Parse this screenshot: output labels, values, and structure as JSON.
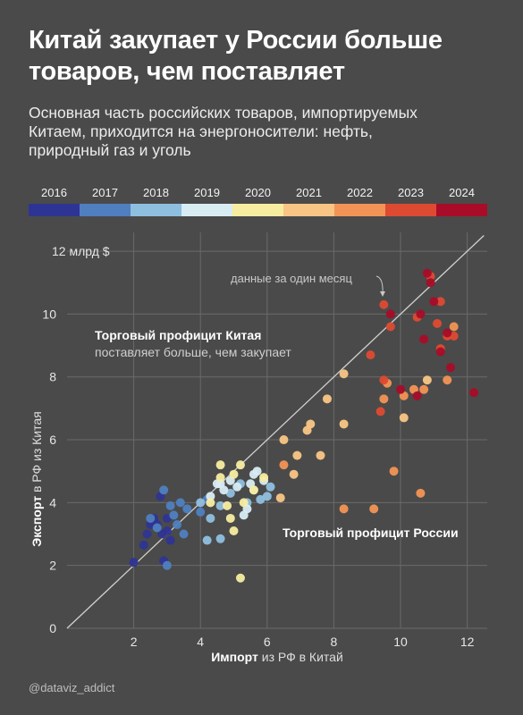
{
  "title_lines": [
    "Китай закупает у России больше",
    "товаров, чем поставляет"
  ],
  "subtitle_lines": [
    "Основная часть российских товаров, импортируемых",
    "Китаем, приходится на энергоносители: нефть,",
    "природный газ и уголь"
  ],
  "credit": "@dataviz_addict",
  "colors": {
    "background": "#4a4a4a",
    "grid": "#6a6a6a",
    "diagonal": "#d0d0d0",
    "years": {
      "2016": "#2e3494",
      "2017": "#4f7fbf",
      "2018": "#8fbfde",
      "2019": "#d8ecf3",
      "2020": "#f7eda0",
      "2021": "#f9c585",
      "2022": "#f29455",
      "2023": "#dd4a32",
      "2024": "#a80c28"
    }
  },
  "chart_data": {
    "type": "scatter",
    "title": "",
    "xlabel_bold": "Импорт",
    "xlabel_rest": " из РФ в Китай",
    "ylabel_bold": "Экспорт",
    "ylabel_rest": " в РФ из Китая",
    "xlim": [
      0,
      12.6
    ],
    "ylim": [
      0,
      12.6
    ],
    "x_ticks": [
      2,
      4,
      6,
      8,
      10,
      12
    ],
    "y_ticks": [
      0,
      2,
      4,
      6,
      8,
      10,
      12
    ],
    "y_tick_labels": [
      "0",
      "2",
      "4",
      "6",
      "8",
      "10",
      "12 млрд $"
    ],
    "grid": true,
    "diagonal_line": true,
    "legend": {
      "type": "color-bar",
      "position": "top",
      "years": [
        "2016",
        "2017",
        "2018",
        "2019",
        "2020",
        "2021",
        "2022",
        "2023",
        "2024"
      ]
    },
    "annotations": {
      "monthly_note": "данные за один месяц",
      "china_surplus_bold": "Торговый профицит Китая",
      "china_surplus_sub": "поставляет больше, чем закупает",
      "russia_surplus": "Торговый профицит России"
    },
    "series": [
      {
        "year": "2016",
        "points": [
          [
            2.0,
            2.1
          ],
          [
            2.3,
            2.65
          ],
          [
            2.4,
            3.0
          ],
          [
            2.5,
            3.3
          ],
          [
            2.6,
            3.5
          ],
          [
            2.7,
            3.3
          ],
          [
            2.8,
            4.2
          ],
          [
            2.85,
            3.0
          ],
          [
            2.9,
            2.15
          ],
          [
            3.0,
            3.1
          ],
          [
            3.0,
            3.5
          ],
          [
            3.1,
            2.8
          ]
        ]
      },
      {
        "year": "2017",
        "points": [
          [
            2.5,
            3.5
          ],
          [
            2.7,
            3.2
          ],
          [
            2.9,
            4.4
          ],
          [
            3.0,
            2.0
          ],
          [
            3.1,
            3.9
          ],
          [
            3.2,
            3.6
          ],
          [
            3.3,
            3.3
          ],
          [
            3.4,
            4.0
          ],
          [
            3.5,
            3.0
          ],
          [
            3.6,
            3.8
          ],
          [
            4.0,
            3.7
          ],
          [
            4.2,
            4.1
          ]
        ]
      },
      {
        "year": "2018",
        "points": [
          [
            4.0,
            4.0
          ],
          [
            4.3,
            3.5
          ],
          [
            4.6,
            3.9
          ],
          [
            4.9,
            4.3
          ],
          [
            5.2,
            4.6
          ],
          [
            5.4,
            4.0
          ],
          [
            5.6,
            4.4
          ],
          [
            5.8,
            4.1
          ],
          [
            6.0,
            4.2
          ],
          [
            6.1,
            4.5
          ],
          [
            4.2,
            2.8
          ],
          [
            4.6,
            2.85
          ]
        ]
      },
      {
        "year": "2019",
        "points": [
          [
            4.3,
            4.2
          ],
          [
            4.5,
            4.6
          ],
          [
            4.7,
            4.4
          ],
          [
            4.9,
            4.7
          ],
          [
            5.1,
            4.5
          ],
          [
            5.3,
            3.6
          ],
          [
            5.4,
            3.8
          ],
          [
            5.5,
            4.6
          ],
          [
            5.6,
            4.9
          ],
          [
            5.7,
            5.0
          ],
          [
            5.9,
            4.7
          ],
          [
            4.6,
            4.6
          ]
        ]
      },
      {
        "year": "2020",
        "points": [
          [
            4.3,
            4.0
          ],
          [
            4.6,
            4.8
          ],
          [
            4.6,
            5.2
          ],
          [
            4.8,
            3.9
          ],
          [
            4.9,
            3.5
          ],
          [
            5.0,
            4.9
          ],
          [
            5.0,
            3.1
          ],
          [
            5.2,
            5.2
          ],
          [
            5.3,
            4.0
          ],
          [
            5.2,
            1.6
          ],
          [
            5.6,
            4.4
          ],
          [
            5.9,
            4.8
          ]
        ]
      },
      {
        "year": "2021",
        "points": [
          [
            6.4,
            4.15
          ],
          [
            6.8,
            4.9
          ],
          [
            6.9,
            5.5
          ],
          [
            7.2,
            6.3
          ],
          [
            7.3,
            6.5
          ],
          [
            7.6,
            5.5
          ],
          [
            8.3,
            6.5
          ],
          [
            6.5,
            6.0
          ],
          [
            7.8,
            7.3
          ],
          [
            8.3,
            8.1
          ],
          [
            10.1,
            6.7
          ],
          [
            10.8,
            7.9
          ]
        ]
      },
      {
        "year": "2022",
        "points": [
          [
            6.5,
            5.2
          ],
          [
            8.3,
            3.8
          ],
          [
            9.2,
            3.8
          ],
          [
            9.5,
            7.3
          ],
          [
            9.6,
            7.8
          ],
          [
            9.8,
            5.0
          ],
          [
            10.1,
            7.4
          ],
          [
            10.4,
            7.6
          ],
          [
            10.6,
            4.3
          ],
          [
            10.7,
            7.6
          ],
          [
            11.4,
            7.9
          ],
          [
            11.6,
            9.6
          ]
        ]
      },
      {
        "year": "2023",
        "points": [
          [
            9.1,
            8.7
          ],
          [
            9.4,
            6.9
          ],
          [
            9.5,
            7.9
          ],
          [
            9.5,
            10.3
          ],
          [
            9.7,
            9.6
          ],
          [
            10.5,
            9.9
          ],
          [
            10.9,
            11.2
          ],
          [
            11.1,
            9.7
          ],
          [
            11.2,
            8.9
          ],
          [
            11.4,
            9.3
          ],
          [
            11.6,
            9.3
          ],
          [
            11.2,
            10.4
          ]
        ]
      },
      {
        "year": "2024",
        "points": [
          [
            9.7,
            10.0
          ],
          [
            10.0,
            7.6
          ],
          [
            10.5,
            7.4
          ],
          [
            10.6,
            10.0
          ],
          [
            10.8,
            11.3
          ],
          [
            10.9,
            11.0
          ],
          [
            11.0,
            10.4
          ],
          [
            11.2,
            8.8
          ],
          [
            11.4,
            9.4
          ],
          [
            11.5,
            8.3
          ],
          [
            12.2,
            7.5
          ],
          [
            10.7,
            9.2
          ]
        ]
      }
    ]
  }
}
